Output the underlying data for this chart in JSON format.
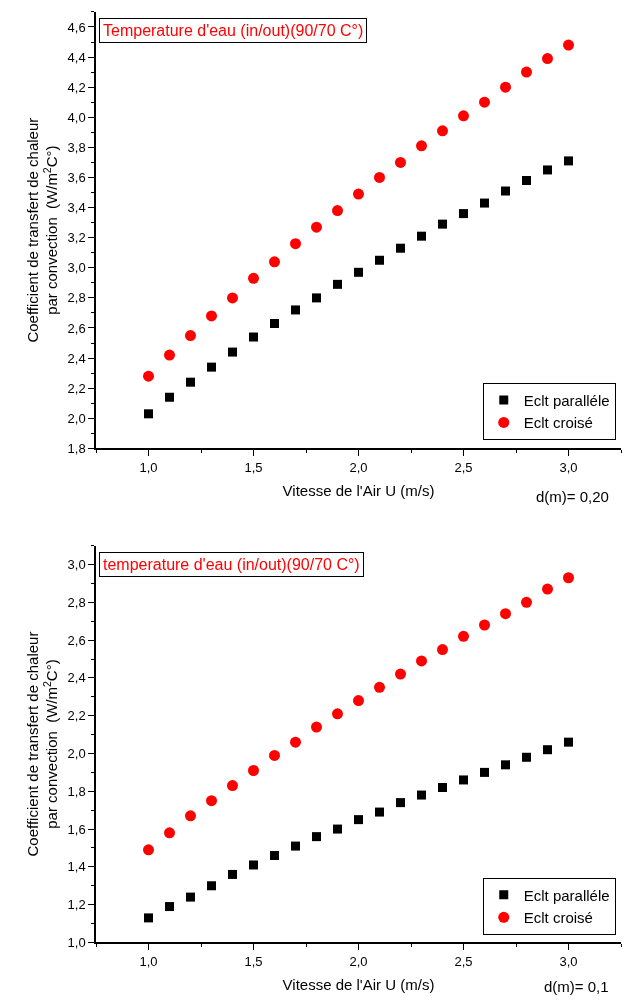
{
  "chart_data": [
    {
      "type": "scatter",
      "xlabel": "Vitesse de l'Air U (m/s)",
      "ylabel": "Coefficient de transfert de chaleur\npar convection  (W/m$^{2}$C°)",
      "annotations": [
        "Temperature d'eau (in/out)(90/70 C°)",
        "d(m)= 0,20"
      ],
      "x": [
        1.0,
        1.1,
        1.2,
        1.3,
        1.4,
        1.5,
        1.6,
        1.7,
        1.8,
        1.9,
        2.0,
        2.1,
        2.2,
        2.3,
        2.4,
        2.5,
        2.6,
        2.7,
        2.8,
        2.9,
        3.0
      ],
      "series": [
        {
          "name": "Eclt paralléle",
          "color": "#000000",
          "marker": "square",
          "values": [
            2.03,
            2.14,
            2.24,
            2.34,
            2.44,
            2.54,
            2.63,
            2.72,
            2.8,
            2.89,
            2.97,
            3.05,
            3.13,
            3.21,
            3.29,
            3.36,
            3.43,
            3.51,
            3.58,
            3.65,
            3.71
          ]
        },
        {
          "name": "Eclt croisé",
          "color": "#ff0000",
          "marker": "circle",
          "values": [
            2.28,
            2.42,
            2.55,
            2.68,
            2.8,
            2.93,
            3.04,
            3.16,
            3.27,
            3.38,
            3.49,
            3.6,
            3.7,
            3.81,
            3.91,
            4.01,
            4.1,
            4.2,
            4.3,
            4.39,
            4.48
          ]
        }
      ],
      "xlim": [
        0.75,
        3.25
      ],
      "xticks": [
        {
          "value": 1.0,
          "label": "1,0"
        },
        {
          "value": 1.5,
          "label": "1,5"
        },
        {
          "value": 2.0,
          "label": "2,0"
        },
        {
          "value": 2.5,
          "label": "2,5"
        },
        {
          "value": 3.0,
          "label": "3,0"
        }
      ],
      "ylim": [
        1.8,
        4.7
      ],
      "yticks": [
        {
          "value": 1.8,
          "label": "1,8"
        },
        {
          "value": 2.0,
          "label": "2,0"
        },
        {
          "value": 2.2,
          "label": "2,2"
        },
        {
          "value": 2.4,
          "label": "2,4"
        },
        {
          "value": 2.6,
          "label": "2,6"
        },
        {
          "value": 2.8,
          "label": "2,8"
        },
        {
          "value": 3.0,
          "label": "3,0"
        },
        {
          "value": 3.2,
          "label": "3,2"
        },
        {
          "value": 3.4,
          "label": "3,4"
        },
        {
          "value": 3.6,
          "label": "3,6"
        },
        {
          "value": 3.8,
          "label": "3,8"
        },
        {
          "value": 4.0,
          "label": "4,0"
        },
        {
          "value": 4.2,
          "label": "4,2"
        },
        {
          "value": 4.4,
          "label": "4,4"
        },
        {
          "value": 4.6,
          "label": "4,6"
        }
      ],
      "legend": "bottom right"
    },
    {
      "type": "scatter",
      "xlabel": "Vitesse de l'Air U (m/s)",
      "ylabel": "Coefficient de transfert de chaleur\npar convection  (W/m$^{2}$C°)",
      "annotations": [
        "temperature d'eau (in/out)(90/70 C°)",
        "d(m)= 0,1"
      ],
      "x": [
        1.0,
        1.1,
        1.2,
        1.3,
        1.4,
        1.5,
        1.6,
        1.7,
        1.8,
        1.9,
        2.0,
        2.1,
        2.2,
        2.3,
        2.4,
        2.5,
        2.6,
        2.7,
        2.8,
        2.9,
        3.0
      ],
      "series": [
        {
          "name": "Eclt paralléle",
          "color": "#000000",
          "marker": "square",
          "values": [
            1.13,
            1.19,
            1.24,
            1.3,
            1.36,
            1.41,
            1.46,
            1.51,
            1.56,
            1.6,
            1.65,
            1.69,
            1.74,
            1.78,
            1.82,
            1.86,
            1.9,
            1.94,
            1.98,
            2.02,
            2.06
          ]
        },
        {
          "name": "Eclt croisé",
          "color": "#ff0000",
          "marker": "circle",
          "values": [
            1.49,
            1.58,
            1.67,
            1.75,
            1.83,
            1.91,
            1.99,
            2.06,
            2.14,
            2.21,
            2.28,
            2.35,
            2.42,
            2.49,
            2.55,
            2.62,
            2.68,
            2.74,
            2.8,
            2.87,
            2.93
          ]
        }
      ],
      "xlim": [
        0.75,
        3.25
      ],
      "xticks": [
        {
          "value": 1.0,
          "label": "1,0"
        },
        {
          "value": 1.5,
          "label": "1,5"
        },
        {
          "value": 2.0,
          "label": "2,0"
        },
        {
          "value": 2.5,
          "label": "2,5"
        },
        {
          "value": 3.0,
          "label": "3,0"
        }
      ],
      "ylim": [
        1.0,
        3.1
      ],
      "yticks": [
        {
          "value": 1.0,
          "label": "1,0"
        },
        {
          "value": 1.2,
          "label": "1,2"
        },
        {
          "value": 1.4,
          "label": "1,4"
        },
        {
          "value": 1.6,
          "label": "1,6"
        },
        {
          "value": 1.8,
          "label": "1,8"
        },
        {
          "value": 2.0,
          "label": "2,0"
        },
        {
          "value": 2.2,
          "label": "2,2"
        },
        {
          "value": 2.4,
          "label": "2,4"
        },
        {
          "value": 2.6,
          "label": "2,6"
        },
        {
          "value": 2.8,
          "label": "2,8"
        },
        {
          "value": 3.0,
          "label": "3,0"
        }
      ],
      "legend": "bottom right"
    }
  ]
}
